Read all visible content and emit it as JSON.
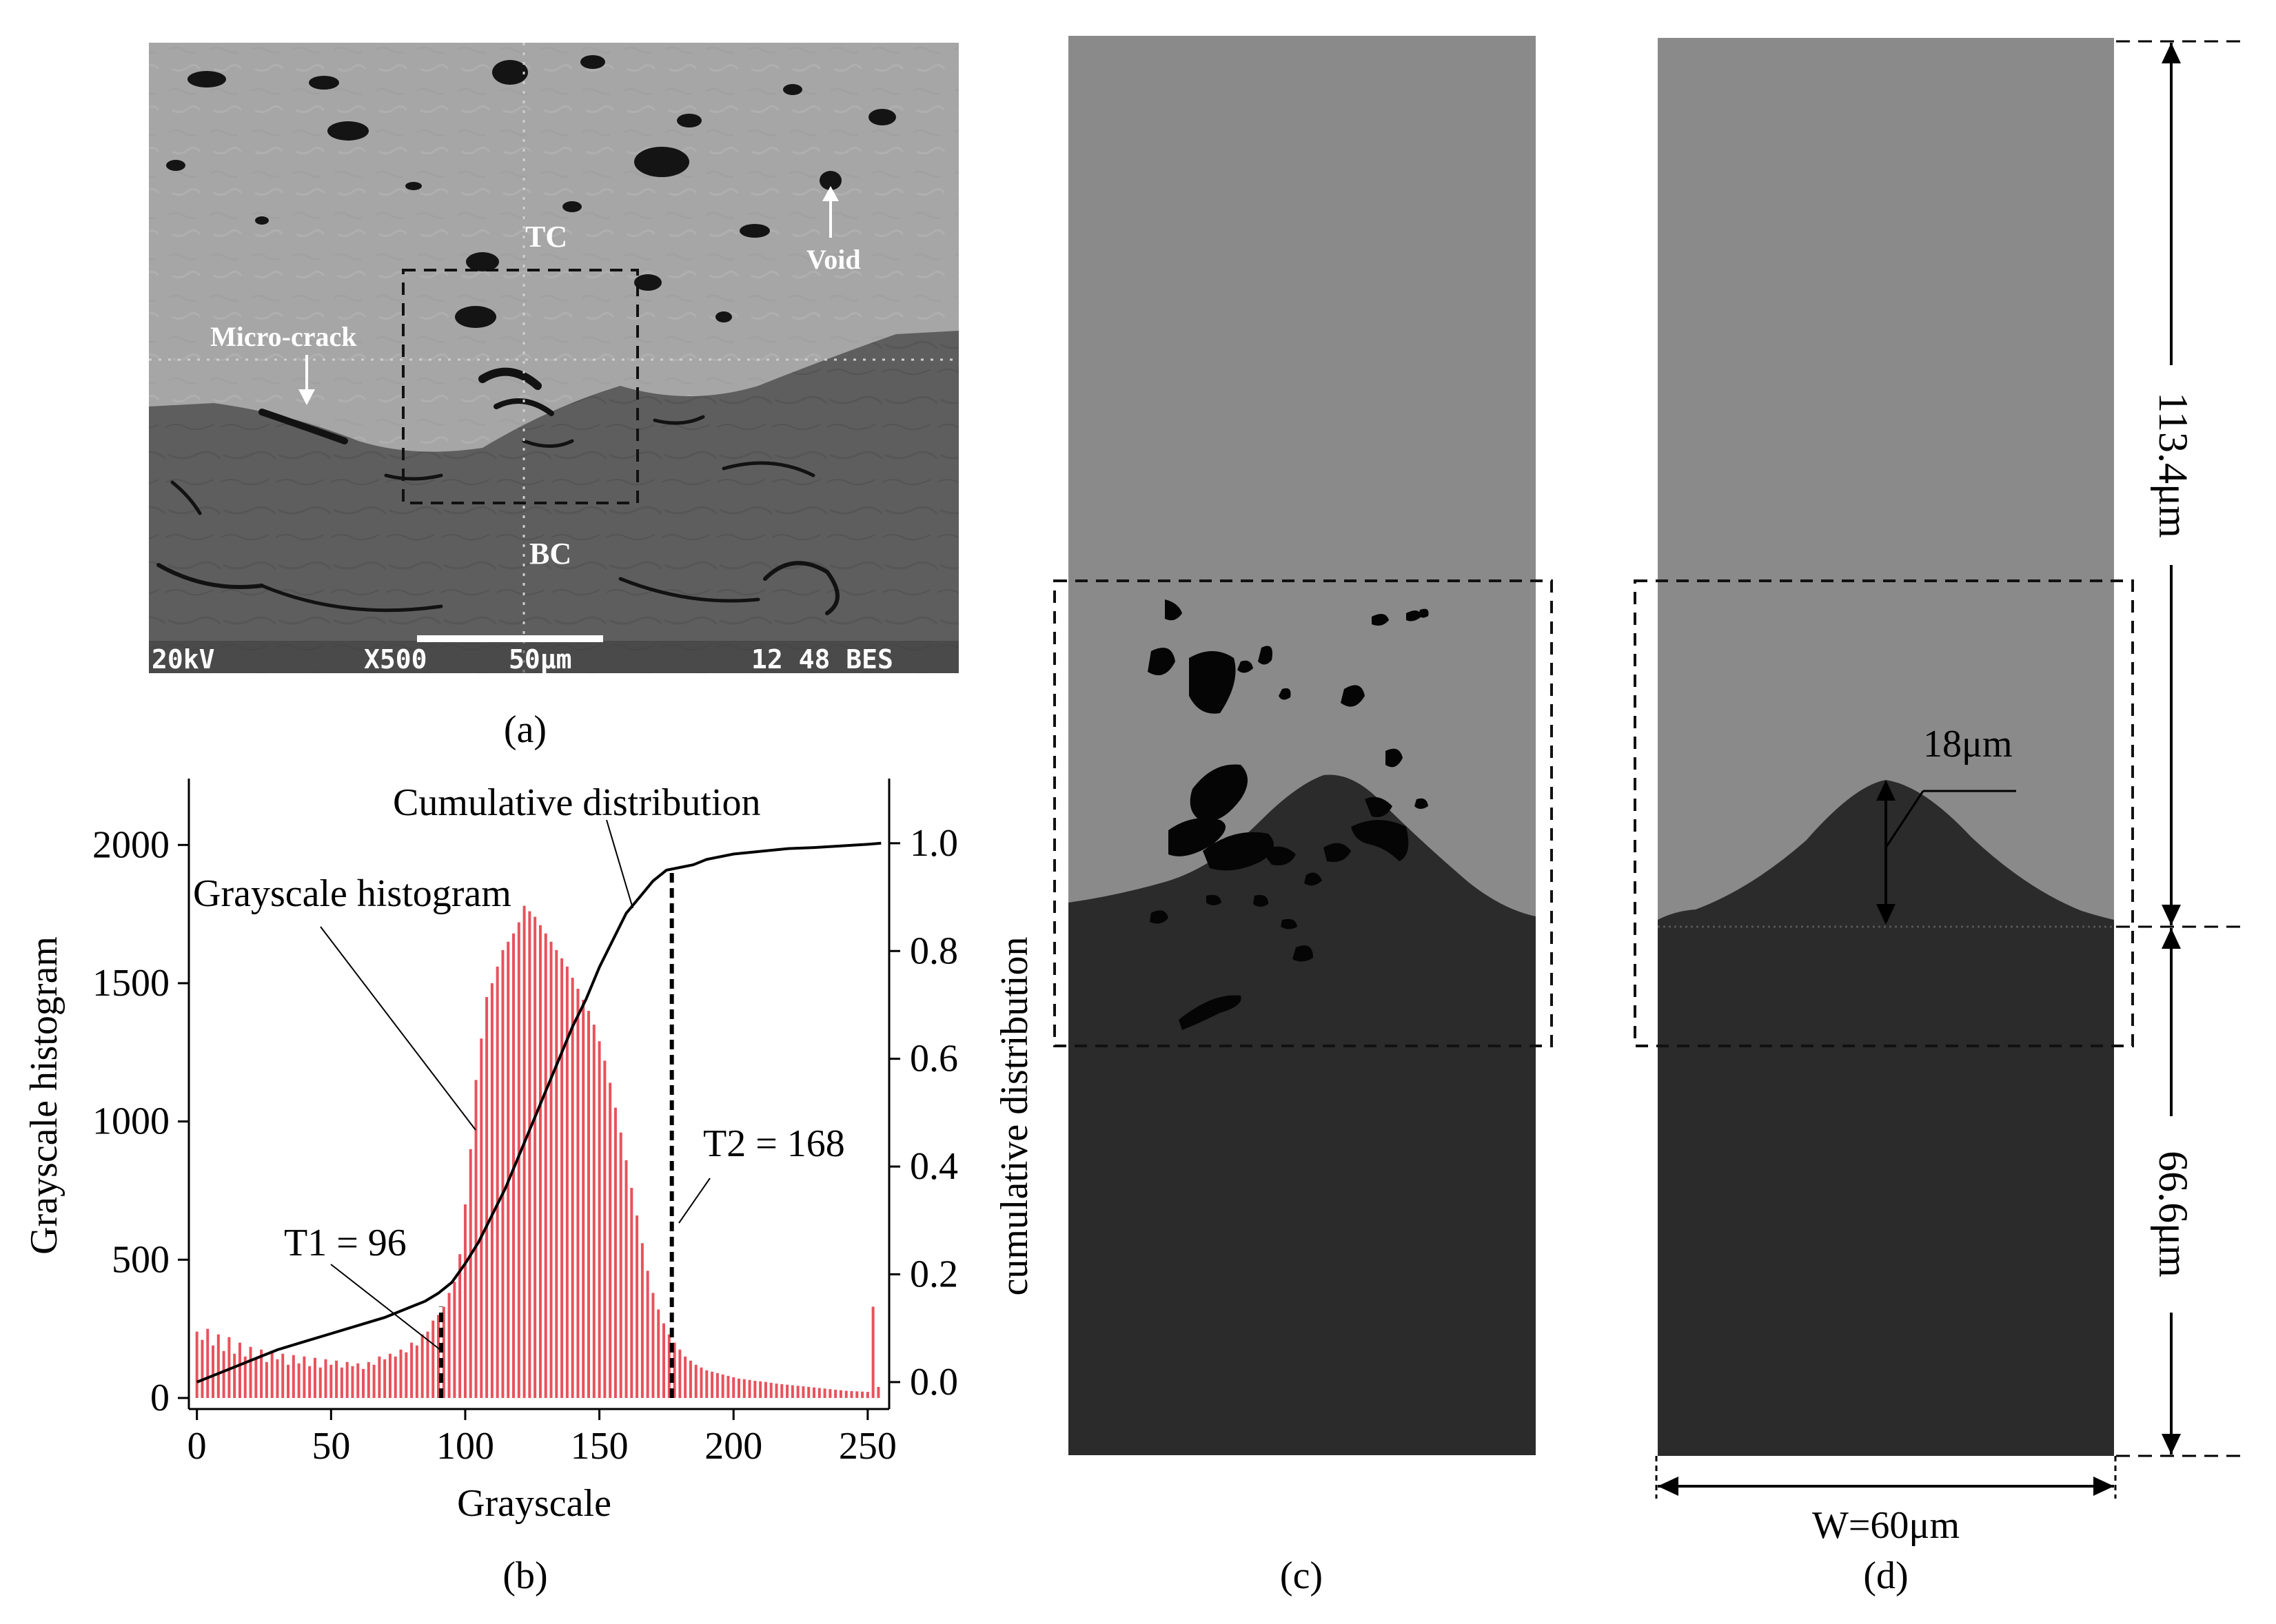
{
  "panel_a": {
    "caption": "(a)",
    "labels": {
      "tc": "TC",
      "bc": "BC",
      "void": "Void",
      "micro_crack": "Micro-crack"
    },
    "info_bar": {
      "voltage": "20kV",
      "magnification": "X500",
      "scale": "50µm",
      "id": "12 48 BES"
    }
  },
  "panel_b": {
    "caption": "(b)",
    "xlabel": "Grayscale",
    "ylabel_left": "Grayscale histogram",
    "ylabel_right": "cumulative distribution",
    "annotations": {
      "cumulative": "Cumulative distribution",
      "histogram": "Grayscale histogram",
      "t1": "T1 = 96",
      "t2": "T2 = 168"
    },
    "x_ticks": [
      "0",
      "50",
      "100",
      "150",
      "200",
      "250"
    ],
    "y_ticks_left": [
      "0",
      "500",
      "1000",
      "1500",
      "2000"
    ],
    "y_ticks_right": [
      "0.0",
      "0.2",
      "0.4",
      "0.6",
      "0.8",
      "1.0"
    ]
  },
  "panel_c": {
    "caption": "(c)"
  },
  "panel_d": {
    "caption": "(d)",
    "dim_height_top": "113.4μm",
    "dim_height_bottom": "66.6μm",
    "dim_peak": "18μm",
    "dim_width": "W=60μm"
  },
  "colors": {
    "hist_bar": "#e8525c",
    "curve": "#000000",
    "tc_gray": "#8a8a8a",
    "bc_dark": "#2b2b2b",
    "crack": "#050505"
  },
  "chart_data": {
    "type": "bar",
    "title": "",
    "xlabel": "Grayscale",
    "ylabel": "Grayscale histogram",
    "xlim": [
      -3,
      258
    ],
    "ylim": [
      -40,
      2240
    ],
    "thresholds": {
      "T1": 96,
      "T2": 168
    },
    "histogram": {
      "x": [
        0,
        2,
        4,
        6,
        8,
        10,
        12,
        14,
        16,
        18,
        20,
        22,
        24,
        26,
        28,
        30,
        32,
        34,
        36,
        38,
        40,
        42,
        44,
        46,
        48,
        50,
        52,
        54,
        56,
        58,
        60,
        62,
        64,
        66,
        68,
        70,
        72,
        74,
        76,
        78,
        80,
        82,
        84,
        86,
        88,
        90,
        92,
        94,
        96,
        98,
        100,
        102,
        104,
        106,
        108,
        110,
        112,
        114,
        116,
        118,
        120,
        122,
        124,
        126,
        128,
        130,
        132,
        134,
        136,
        138,
        140,
        142,
        144,
        146,
        148,
        150,
        152,
        154,
        156,
        158,
        160,
        162,
        164,
        166,
        168,
        170,
        172,
        174,
        176,
        178,
        180,
        182,
        184,
        186,
        188,
        190,
        192,
        194,
        196,
        198,
        200,
        202,
        204,
        206,
        208,
        210,
        212,
        214,
        216,
        218,
        220,
        222,
        224,
        226,
        228,
        230,
        232,
        234,
        236,
        238,
        240,
        242,
        244,
        246,
        248,
        250,
        252,
        254
      ],
      "values": [
        240,
        210,
        250,
        190,
        230,
        170,
        220,
        160,
        200,
        150,
        185,
        140,
        175,
        130,
        170,
        140,
        160,
        120,
        155,
        125,
        150,
        115,
        145,
        110,
        140,
        120,
        135,
        110,
        130,
        115,
        125,
        105,
        130,
        120,
        150,
        140,
        160,
        150,
        175,
        165,
        200,
        190,
        230,
        240,
        280,
        300,
        330,
        380,
        420,
        520,
        700,
        900,
        1150,
        1300,
        1450,
        1500,
        1560,
        1620,
        1650,
        1680,
        1720,
        1780,
        1760,
        1740,
        1710,
        1680,
        1650,
        1620,
        1590,
        1560,
        1520,
        1480,
        1440,
        1400,
        1350,
        1290,
        1220,
        1140,
        1050,
        960,
        860,
        760,
        660,
        560,
        460,
        380,
        320,
        270,
        230,
        200,
        175,
        150,
        135,
        120,
        110,
        100,
        95,
        90,
        85,
        80,
        75,
        70,
        68,
        65,
        62,
        60,
        58,
        55,
        52,
        50,
        48,
        46,
        44,
        42,
        40,
        38,
        36,
        34,
        32,
        30,
        28,
        26,
        25,
        24,
        23,
        22,
        330,
        40
      ]
    },
    "cumulative": {
      "x": [
        0,
        10,
        20,
        30,
        40,
        50,
        60,
        70,
        80,
        85,
        90,
        95,
        100,
        105,
        110,
        115,
        120,
        125,
        130,
        135,
        140,
        145,
        150,
        155,
        160,
        165,
        170,
        175,
        180,
        185,
        190,
        200,
        210,
        220,
        230,
        240,
        250,
        255
      ],
      "y": [
        0.0,
        0.02,
        0.04,
        0.06,
        0.075,
        0.09,
        0.105,
        0.12,
        0.14,
        0.15,
        0.165,
        0.185,
        0.22,
        0.26,
        0.31,
        0.36,
        0.42,
        0.48,
        0.54,
        0.6,
        0.66,
        0.71,
        0.77,
        0.82,
        0.87,
        0.9,
        0.93,
        0.95,
        0.955,
        0.96,
        0.97,
        0.98,
        0.985,
        0.99,
        0.992,
        0.995,
        0.998,
        1.0
      ]
    },
    "y2lim": [
      -0.05,
      1.12
    ],
    "y2label": "cumulative distribution",
    "legend": "none"
  }
}
